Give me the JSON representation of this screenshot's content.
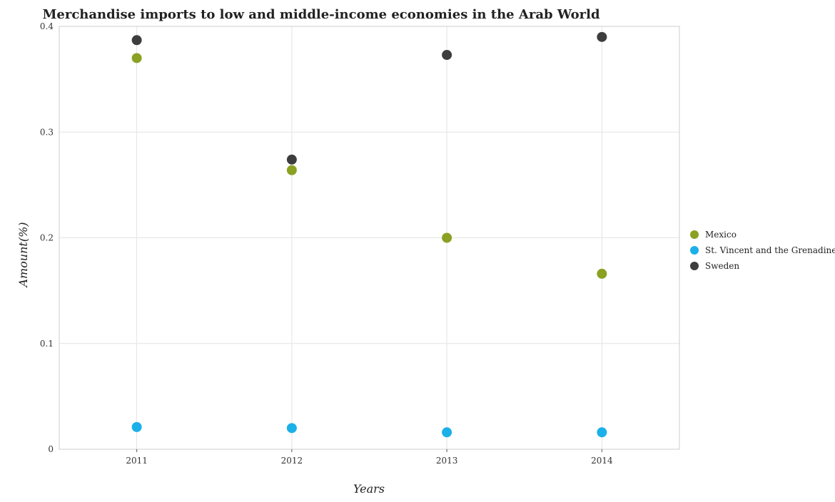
{
  "chart_data": {
    "type": "scatter",
    "title": "Merchandise imports to low and middle-income economies in the Arab World",
    "xlabel": "Years",
    "ylabel": "Amount(%)",
    "categories": [
      "2011",
      "2012",
      "2013",
      "2014"
    ],
    "ylim": [
      0,
      0.4
    ],
    "yticks": [
      0,
      0.1,
      0.2,
      0.3,
      0.4
    ],
    "ytick_labels": [
      "0",
      "0.1",
      "0.2",
      "0.3",
      "0.4"
    ],
    "grid": true,
    "legend_position": "right",
    "series": [
      {
        "name": "Mexico",
        "color": "#8aa122",
        "values": [
          0.37,
          0.264,
          0.2,
          0.166
        ]
      },
      {
        "name": "St. Vincent and the Grenadines",
        "color": "#1bb0e8",
        "values": [
          0.021,
          0.02,
          0.016,
          0.016
        ]
      },
      {
        "name": "Sweden",
        "color": "#3d3d3d",
        "values": [
          0.387,
          0.274,
          0.373,
          0.39
        ]
      }
    ]
  }
}
